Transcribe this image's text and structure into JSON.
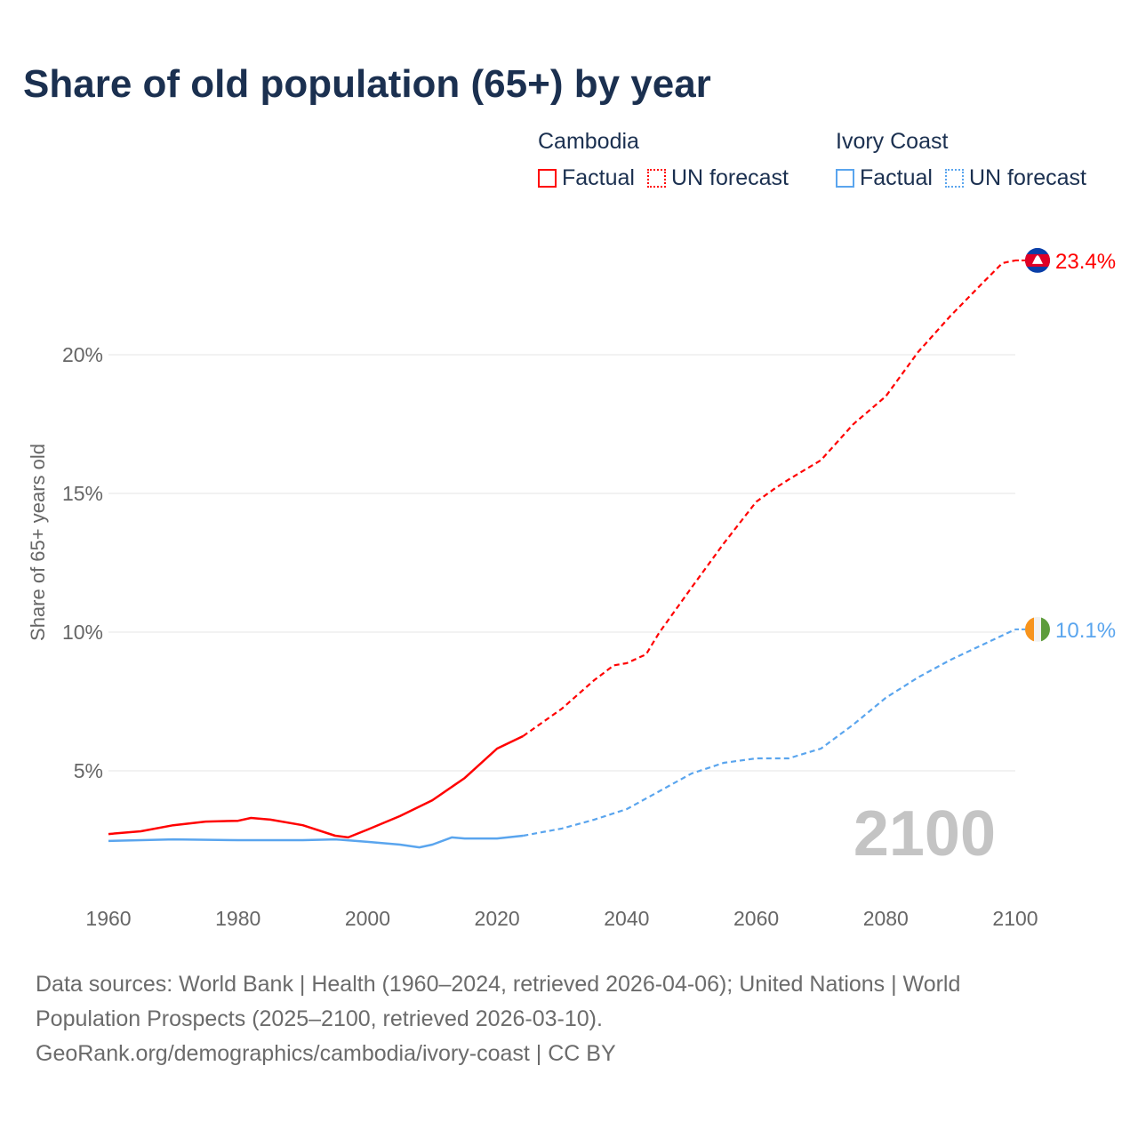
{
  "title": "Share of old population (65+) by year",
  "legend": {
    "groups": [
      {
        "name": "Cambodia",
        "factual": "Factual",
        "forecast": "UN forecast",
        "color": "#ff0000"
      },
      {
        "name": "Ivory Coast",
        "factual": "Factual",
        "forecast": "UN forecast",
        "color": "#5aa5ee"
      }
    ]
  },
  "year_label": "2100",
  "footer": {
    "line1": "Data sources: World Bank | Health (1960–2024, retrieved 2026-04-06); United Nations | World",
    "line2": "Population Prospects (2025–2100, retrieved 2026-03-10).",
    "line3": "GeoRank.org/demographics/cambodia/ivory-coast | CC BY"
  },
  "chart_data": {
    "type": "line",
    "title": "Share of old population (65+) by year",
    "xlabel": "",
    "ylabel": "Share of 65+ years old",
    "xlim": [
      1960,
      2100
    ],
    "ylim": [
      0,
      25
    ],
    "x_ticks": [
      "1960",
      "1980",
      "2000",
      "2020",
      "2040",
      "2060",
      "2080",
      "2100"
    ],
    "y_ticks": [
      {
        "v": 5,
        "label": "5%"
      },
      {
        "v": 10,
        "label": "10%"
      },
      {
        "v": 15,
        "label": "15%"
      },
      {
        "v": 20,
        "label": "20%"
      }
    ],
    "grid": true,
    "legend_position": "top-right",
    "series": [
      {
        "name": "Cambodia",
        "color": "#ff0000",
        "end_label": "23.4%",
        "factual": [
          [
            1960,
            2.72
          ],
          [
            1965,
            2.82
          ],
          [
            1970,
            3.04
          ],
          [
            1975,
            3.17
          ],
          [
            1980,
            3.2
          ],
          [
            1982,
            3.3
          ],
          [
            1985,
            3.24
          ],
          [
            1990,
            3.04
          ],
          [
            1995,
            2.66
          ],
          [
            1997,
            2.6
          ],
          [
            2000,
            2.88
          ],
          [
            2005,
            3.37
          ],
          [
            2010,
            3.94
          ],
          [
            2015,
            4.74
          ],
          [
            2020,
            5.8
          ],
          [
            2024,
            6.25
          ]
        ],
        "forecast": [
          [
            2024,
            6.25
          ],
          [
            2030,
            7.24
          ],
          [
            2035,
            8.27
          ],
          [
            2038,
            8.8
          ],
          [
            2040,
            8.88
          ],
          [
            2043,
            9.2
          ],
          [
            2045,
            9.97
          ],
          [
            2050,
            11.6
          ],
          [
            2055,
            13.2
          ],
          [
            2060,
            14.7
          ],
          [
            2063,
            15.2
          ],
          [
            2065,
            15.5
          ],
          [
            2070,
            16.2
          ],
          [
            2075,
            17.5
          ],
          [
            2080,
            18.5
          ],
          [
            2085,
            20.1
          ],
          [
            2090,
            21.4
          ],
          [
            2095,
            22.6
          ],
          [
            2098,
            23.3
          ],
          [
            2100,
            23.4
          ]
        ]
      },
      {
        "name": "Ivory Coast",
        "color": "#5aa5ee",
        "end_label": "10.1%",
        "factual": [
          [
            1960,
            2.47
          ],
          [
            1970,
            2.53
          ],
          [
            1980,
            2.5
          ],
          [
            1990,
            2.5
          ],
          [
            1995,
            2.53
          ],
          [
            2000,
            2.44
          ],
          [
            2005,
            2.34
          ],
          [
            2008,
            2.24
          ],
          [
            2010,
            2.34
          ],
          [
            2013,
            2.6
          ],
          [
            2015,
            2.56
          ],
          [
            2020,
            2.56
          ],
          [
            2024,
            2.66
          ]
        ],
        "forecast": [
          [
            2024,
            2.66
          ],
          [
            2030,
            2.92
          ],
          [
            2035,
            3.24
          ],
          [
            2040,
            3.62
          ],
          [
            2045,
            4.26
          ],
          [
            2050,
            4.9
          ],
          [
            2055,
            5.29
          ],
          [
            2060,
            5.45
          ],
          [
            2065,
            5.45
          ],
          [
            2070,
            5.8
          ],
          [
            2075,
            6.67
          ],
          [
            2080,
            7.63
          ],
          [
            2085,
            8.37
          ],
          [
            2090,
            9.0
          ],
          [
            2095,
            9.55
          ],
          [
            2100,
            10.1
          ]
        ]
      }
    ]
  }
}
